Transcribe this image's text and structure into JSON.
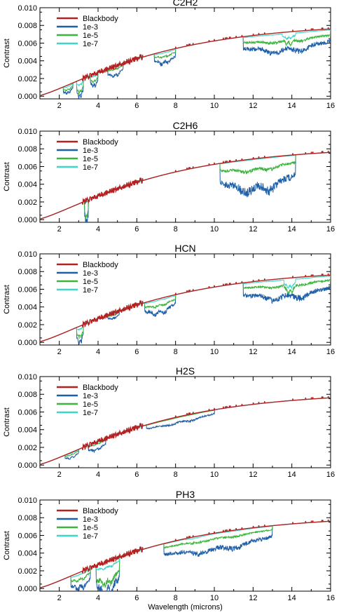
{
  "chart_data": [
    {
      "type": "line",
      "title": "C2H2",
      "ylabel": "Contrast",
      "xlabel": "",
      "xlim": [
        1,
        16
      ],
      "ylim": [
        -0.0003,
        0.01
      ],
      "xticks": [
        "2",
        "4",
        "6",
        "8",
        "10",
        "12",
        "14",
        "16"
      ],
      "yticks": [
        "0.000",
        "0.002",
        "0.004",
        "0.006",
        "0.008",
        "0.010"
      ],
      "legend_position": "top-left",
      "series": [
        {
          "name": "Blackbody",
          "color": "#b22222"
        },
        {
          "name": "1e-3",
          "color": "#1f5fa8"
        },
        {
          "name": "1e-5",
          "color": "#3cb43c"
        },
        {
          "name": "1e-7",
          "color": "#3fd6c8"
        }
      ],
      "bands": [
        {
          "x": [
            2.2,
            2.7
          ],
          "depth": [
            0.001,
            0.0006,
            0.0002
          ]
        },
        {
          "x": [
            2.9,
            3.25
          ],
          "depth": [
            0.0021,
            0.0016,
            0.0006
          ]
        },
        {
          "x": [
            3.6,
            4.0
          ],
          "depth": [
            0.0015,
            0.0009,
            0.0003
          ]
        },
        {
          "x": [
            4.5,
            5.3
          ],
          "depth": [
            0.0012,
            0.0004,
            0.0001
          ]
        },
        {
          "x": [
            6.9,
            8.0
          ],
          "depth": [
            0.0015,
            0.0007,
            0.0002
          ]
        },
        {
          "x": [
            11.5,
            16.0
          ],
          "depth": [
            0.0024,
            0.0012,
            0.0002
          ]
        },
        {
          "x": [
            13.5,
            14.2
          ],
          "depth": [
            0.002,
            0.0015,
            0.0008
          ]
        }
      ]
    },
    {
      "type": "line",
      "title": "C2H6",
      "ylabel": "Contrast",
      "xlabel": "",
      "xlim": [
        1,
        16
      ],
      "ylim": [
        -0.0003,
        0.01
      ],
      "xticks": [
        "2",
        "4",
        "6",
        "8",
        "10",
        "12",
        "14",
        "16"
      ],
      "yticks": [
        "0.000",
        "0.002",
        "0.004",
        "0.006",
        "0.008",
        "0.010"
      ],
      "legend_position": "top-left",
      "series": [
        {
          "name": "Blackbody",
          "color": "#b22222"
        },
        {
          "name": "1e-3",
          "color": "#1f5fa8"
        },
        {
          "name": "1e-5",
          "color": "#3cb43c"
        },
        {
          "name": "1e-7",
          "color": "#3fd6c8"
        }
      ],
      "bands": [
        {
          "x": [
            3.3,
            3.5
          ],
          "depth": [
            0.0028,
            0.002,
            0.0002
          ]
        },
        {
          "x": [
            10.3,
            14.2
          ],
          "depth": [
            0.004,
            0.0015,
            0.0001
          ]
        }
      ]
    },
    {
      "type": "line",
      "title": "HCN",
      "ylabel": "Contrast",
      "xlabel": "",
      "xlim": [
        1,
        16
      ],
      "ylim": [
        -0.0003,
        0.01
      ],
      "xticks": [
        "2",
        "4",
        "6",
        "8",
        "10",
        "12",
        "14",
        "16"
      ],
      "yticks": [
        "0.000",
        "0.002",
        "0.004",
        "0.006",
        "0.008",
        "0.010"
      ],
      "legend_position": "top-left",
      "series": [
        {
          "name": "Blackbody",
          "color": "#b22222"
        },
        {
          "name": "1e-3",
          "color": "#1f5fa8"
        },
        {
          "name": "1e-5",
          "color": "#3cb43c"
        },
        {
          "name": "1e-7",
          "color": "#3fd6c8"
        }
      ],
      "bands": [
        {
          "x": [
            2.9,
            3.25
          ],
          "depth": [
            0.002,
            0.0013,
            0.0004
          ]
        },
        {
          "x": [
            4.5,
            5.1
          ],
          "depth": [
            0.0007,
            0.0003,
            0.0001
          ]
        },
        {
          "x": [
            6.4,
            8.0
          ],
          "depth": [
            0.0018,
            0.0009,
            0.0002
          ]
        },
        {
          "x": [
            11.5,
            16.0
          ],
          "depth": [
            0.0025,
            0.001,
            0.0002
          ]
        },
        {
          "x": [
            13.6,
            14.2
          ],
          "depth": [
            0.002,
            0.0018,
            0.0011
          ]
        }
      ]
    },
    {
      "type": "line",
      "title": "H2S",
      "ylabel": "Contrast",
      "xlabel": "",
      "xlim": [
        1,
        16
      ],
      "ylim": [
        -0.0003,
        0.01
      ],
      "xticks": [
        "2",
        "4",
        "6",
        "8",
        "10",
        "12",
        "14",
        "16"
      ],
      "yticks": [
        "0.000",
        "0.002",
        "0.004",
        "0.006",
        "0.008",
        "0.010"
      ],
      "legend_position": "top-left",
      "series": [
        {
          "name": "Blackbody",
          "color": "#b22222"
        },
        {
          "name": "1e-3",
          "color": "#1f5fa8"
        },
        {
          "name": "1e-5",
          "color": "#3cb43c"
        },
        {
          "name": "1e-7",
          "color": "#3fd6c8"
        }
      ],
      "bands": [
        {
          "x": [
            2.3,
            3.0
          ],
          "depth": [
            0.0007,
            0.0003,
            0.0001
          ]
        },
        {
          "x": [
            3.5,
            4.4
          ],
          "depth": [
            0.001,
            0.0003,
            0.0001
          ]
        },
        {
          "x": [
            6.5,
            10.0
          ],
          "depth": [
            0.0008,
            0.0001,
            0.0
          ]
        }
      ]
    },
    {
      "type": "line",
      "title": "PH3",
      "ylabel": "Contrast",
      "xlabel": "Wavelength (microns)",
      "xlim": [
        1,
        16
      ],
      "ylim": [
        -0.0003,
        0.01
      ],
      "xticks": [
        "2",
        "4",
        "6",
        "8",
        "10",
        "12",
        "14",
        "16"
      ],
      "yticks": [
        "0.000",
        "0.002",
        "0.004",
        "0.006",
        "0.008",
        "0.010"
      ],
      "legend_position": "top-left",
      "series": [
        {
          "name": "Blackbody",
          "color": "#b22222"
        },
        {
          "name": "1e-3",
          "color": "#1f5fa8"
        },
        {
          "name": "1e-5",
          "color": "#3cb43c"
        },
        {
          "name": "1e-7",
          "color": "#3fd6c8"
        }
      ],
      "bands": [
        {
          "x": [
            2.6,
            3.6
          ],
          "depth": [
            0.002,
            0.001,
            0.0003
          ]
        },
        {
          "x": [
            3.9,
            5.1
          ],
          "depth": [
            0.004,
            0.0028,
            0.0008
          ]
        },
        {
          "x": [
            7.4,
            13.0
          ],
          "depth": [
            0.0022,
            0.0008,
            0.0001
          ]
        },
        {
          "x": [
            8.5,
            9.5
          ],
          "depth": [
            0.0012,
            0.0008,
            0.0002
          ]
        }
      ]
    }
  ]
}
